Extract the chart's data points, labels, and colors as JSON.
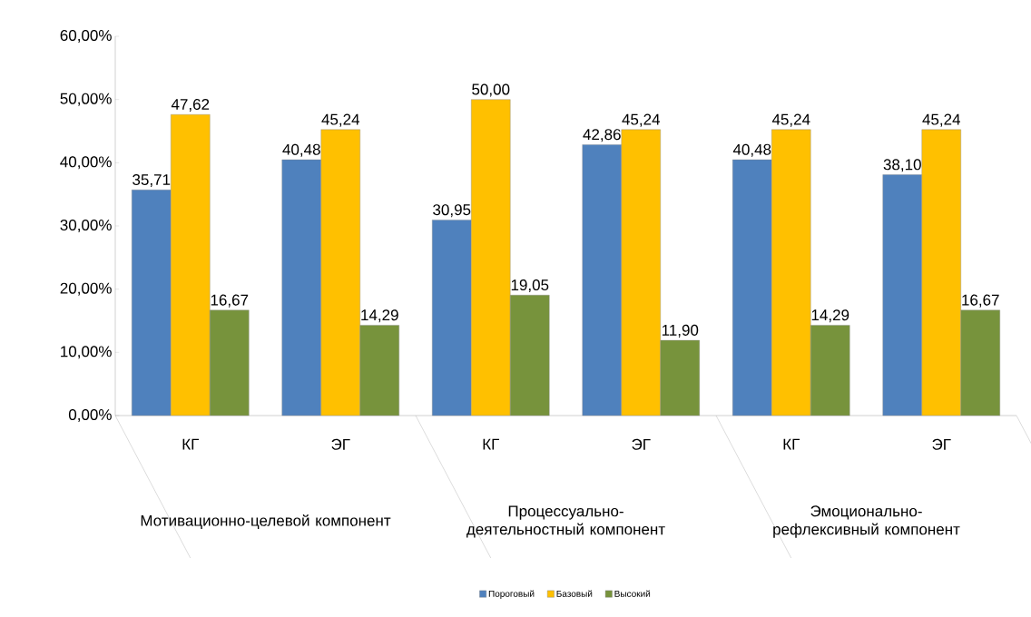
{
  "chart_data": {
    "type": "bar",
    "categories": [
      "КГ",
      "ЭГ",
      "КГ",
      "ЭГ",
      "КГ",
      "ЭГ"
    ],
    "series": [
      {
        "name": "Пороговый",
        "color": "#4f81bd",
        "values": [
          35.71,
          40.48,
          30.95,
          42.86,
          40.48,
          38.1
        ],
        "value_labels": [
          "35,71",
          "40,48",
          "30,95",
          "42,86",
          "40,48",
          "38,10"
        ]
      },
      {
        "name": "Базовый",
        "color": "#ffc000",
        "values": [
          47.62,
          45.24,
          50.0,
          45.24,
          45.24,
          45.24
        ],
        "value_labels": [
          "47,62",
          "45,24",
          "50,00",
          "45,24",
          "45,24",
          "45,24"
        ]
      },
      {
        "name": "Высокий",
        "color": "#77933c",
        "values": [
          16.67,
          14.29,
          19.05,
          11.9,
          14.29,
          16.67
        ],
        "value_labels": [
          "16,67",
          "14,29",
          "19,05",
          "11,90",
          "14,29",
          "16,67"
        ]
      }
    ],
    "annotations": [
      "Мотивационно-целевой компонент",
      "Процессуально- деятельностный компонент",
      "Эмоционально-рефлексивный компонент"
    ],
    "ylim": [
      0,
      60
    ],
    "yticks": [
      {
        "value": 0,
        "label": "0,00%"
      },
      {
        "value": 10,
        "label": "10,00%"
      },
      {
        "value": 20,
        "label": "20,00%"
      },
      {
        "value": 30,
        "label": "30,00%"
      },
      {
        "value": 40,
        "label": "40,00%"
      },
      {
        "value": 50,
        "label": "50,00%"
      },
      {
        "value": 60,
        "label": "60,00%"
      }
    ],
    "grid": false,
    "legend": "bottom"
  }
}
